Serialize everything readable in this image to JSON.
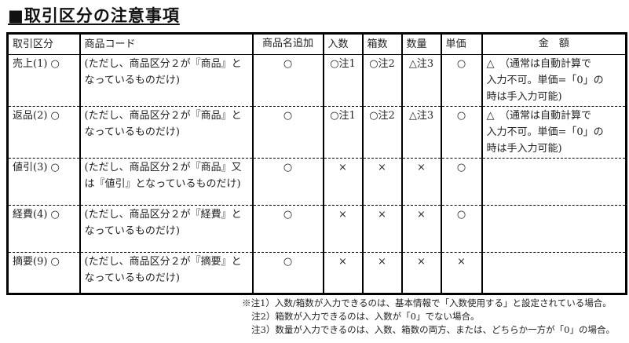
{
  "title": "■取引区分の注意事項",
  "headers": [
    "取引区分",
    "商品コード",
    "商品名追加",
    "入数",
    "箱数",
    "数量",
    "単価",
    "金　額"
  ],
  "rows": [
    {
      "kubun": "売上(1) ○",
      "code": [
        "(ただし、商品区分２が『商品』と",
        "なっているものだけ)"
      ],
      "name_add": "○",
      "irisu": "○注1",
      "hakosu": "○注2",
      "suryo": "△注3",
      "tanka": "○",
      "kingaku": [
        "△　（通常は自動計算で",
        "入力不可。単価=「0」の",
        "時は手入力可能)"
      ]
    },
    {
      "kubun": "返品(2) ○",
      "code": [
        "(ただし、商品区分２が『商品』と",
        "なっているものだけ)"
      ],
      "name_add": "○",
      "irisu": "○注1",
      "hakosu": "○注2",
      "suryo": "△注3",
      "tanka": "○",
      "kingaku": [
        "△　（通常は自動計算で",
        "入力不可。単価=「0」の",
        "時は手入力可能)"
      ]
    },
    {
      "kubun": "値引(3) ○",
      "code": [
        "(ただし、商品区分２が『商品』又",
        "は『値引』となっているものだけ)"
      ],
      "name_add": "○",
      "irisu": "×",
      "hakosu": "×",
      "suryo": "×",
      "tanka": "○",
      "kingaku": []
    },
    {
      "kubun": "経費(4) ○",
      "code": [
        "(ただし、商品区分２が『経費』と",
        "なっているものだけ)"
      ],
      "name_add": "○",
      "irisu": "×",
      "hakosu": "×",
      "suryo": "×",
      "tanka": "○",
      "kingaku": []
    },
    {
      "kubun": "摘要(9) ○",
      "code": [
        "(ただし、商品区分２が『摘要』と",
        "なっているものだけ)"
      ],
      "name_add": "○",
      "irisu": "×",
      "hakosu": "×",
      "suryo": "×",
      "tanka": "×",
      "kingaku": []
    }
  ],
  "notes": [
    "※注1）入数/箱数が入力できるのは、基本情報で「入数使用する」と設定されている場合。",
    "注2）箱数が入力できるのは、入数が「0」でない場合。",
    "注3）数量が入力できるのは、入数、箱数の両方、または、どちらか一方が「0」の場合。"
  ]
}
